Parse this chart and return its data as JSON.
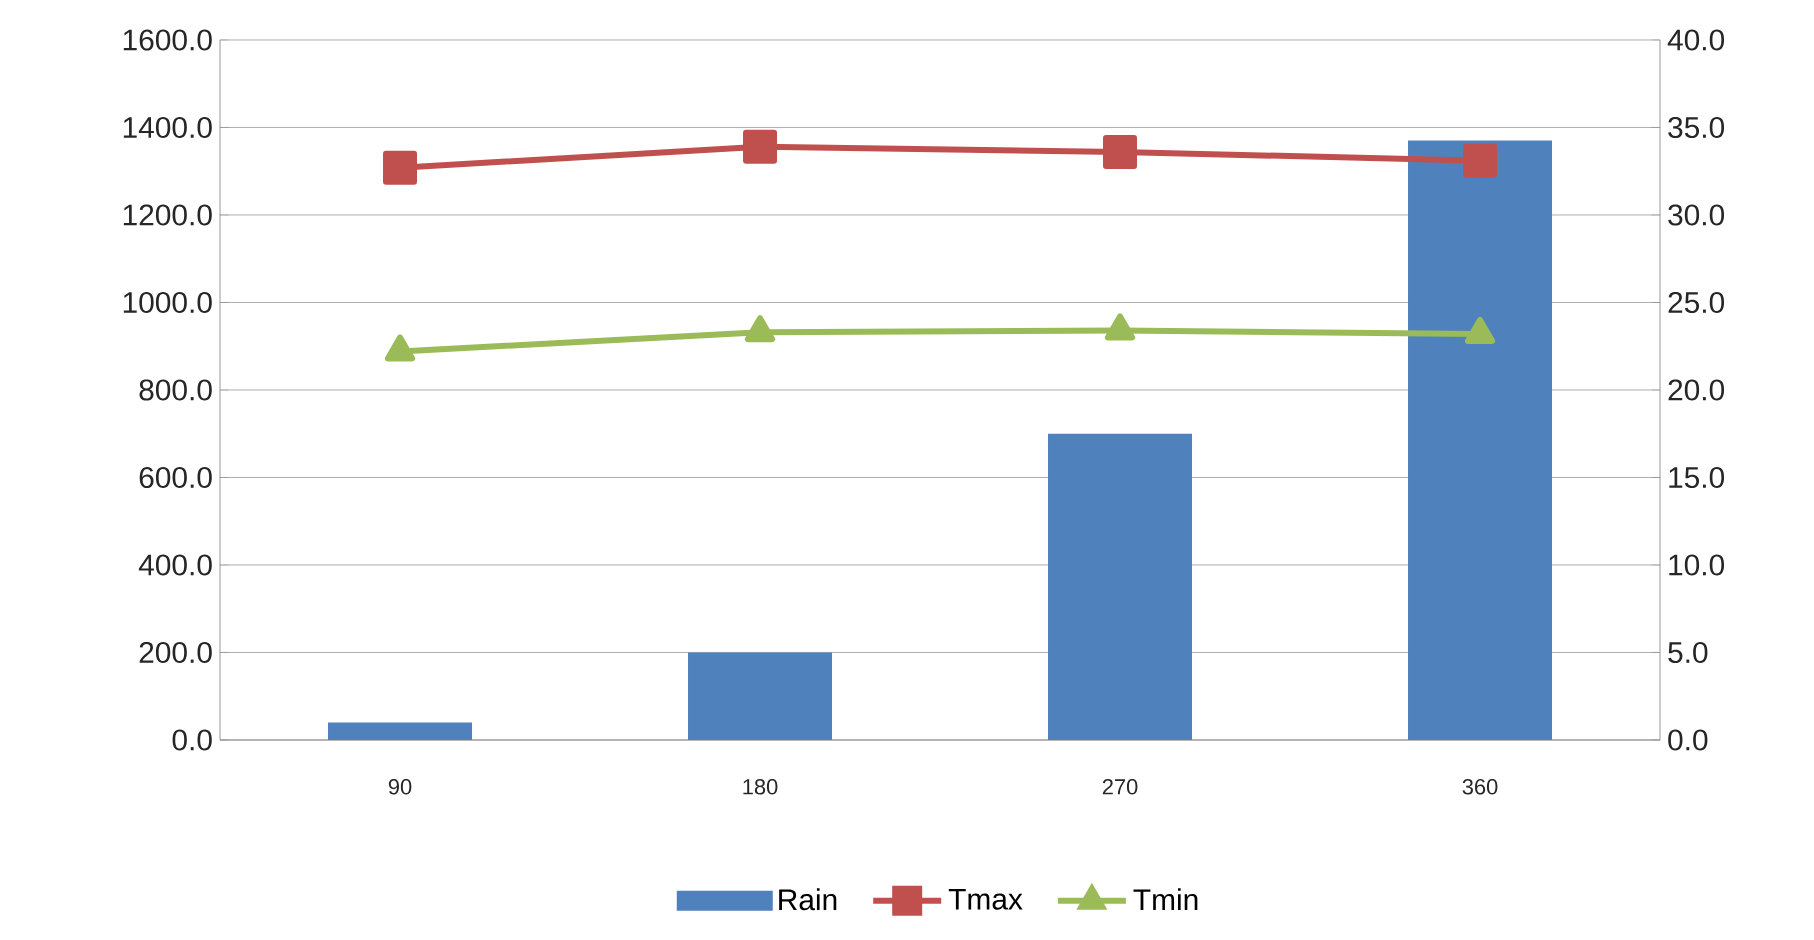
{
  "chart_data": {
    "type": "bar",
    "categories": [
      "90",
      "180",
      "270",
      "360"
    ],
    "series": [
      {
        "name": "Rain",
        "color": "#4f81bd",
        "values": [
          40,
          200,
          700,
          1370
        ]
      },
      {
        "name": "Tmax",
        "type": "line",
        "axis": "y2",
        "color": "#c0504d",
        "marker": "square",
        "values": [
          32.7,
          33.9,
          33.6,
          33.1
        ]
      },
      {
        "name": "Tmin",
        "type": "line",
        "axis": "y2",
        "color": "#9bbb59",
        "marker": "triangle",
        "values": [
          22.2,
          23.3,
          23.4,
          23.2
        ]
      }
    ],
    "ylim": [
      0,
      1600
    ],
    "yticks": [
      {
        "value": 0,
        "label": "0.0"
      },
      {
        "value": 200,
        "label": "200.0"
      },
      {
        "value": 400,
        "label": "400.0"
      },
      {
        "value": 600,
        "label": "600.0"
      },
      {
        "value": 800,
        "label": "800.0"
      },
      {
        "value": 1000,
        "label": "1000.0"
      },
      {
        "value": 1200,
        "label": "1200.0"
      },
      {
        "value": 1400,
        "label": "1400.0"
      },
      {
        "value": 1600,
        "label": "1600.0"
      }
    ],
    "y2lim": [
      0,
      40
    ],
    "y2ticks": [
      {
        "value": 0,
        "label": "0.0"
      },
      {
        "value": 5,
        "label": "5.0"
      },
      {
        "value": 10,
        "label": "10.0"
      },
      {
        "value": 15,
        "label": "15.0"
      },
      {
        "value": 20,
        "label": "20.0"
      },
      {
        "value": 25,
        "label": "25.0"
      },
      {
        "value": 30,
        "label": "30.0"
      },
      {
        "value": 35,
        "label": "35.0"
      },
      {
        "value": 40,
        "label": "40.0"
      }
    ],
    "grid": "y",
    "legend": "bottom"
  }
}
